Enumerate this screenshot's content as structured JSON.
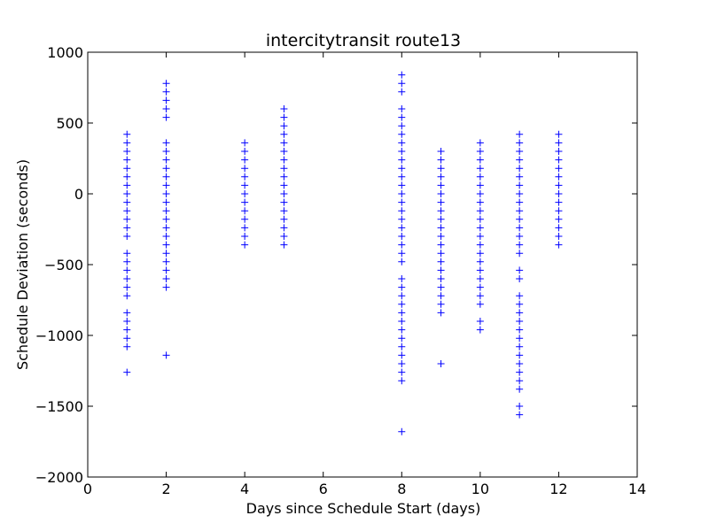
{
  "chart_data": {
    "type": "scatter",
    "title": "intercitytransit route13",
    "xlabel": "Days since Schedule Start (days)",
    "ylabel": "Schedule Deviation (seconds)",
    "xlim": [
      0,
      14
    ],
    "ylim": [
      -2000,
      1000
    ],
    "xticks": [
      0,
      2,
      4,
      6,
      8,
      10,
      12,
      14
    ],
    "yticks": [
      -2000,
      -1500,
      -1000,
      -500,
      0,
      500,
      1000
    ],
    "xtick_labels": [
      "0",
      "2",
      "4",
      "6",
      "8",
      "10",
      "12",
      "14"
    ],
    "ytick_labels": [
      "−2000",
      "−1500",
      "−1000",
      "−500",
      "0",
      "500",
      "1000"
    ],
    "grid": false,
    "marker": "+",
    "marker_color": "#0000ff",
    "points": [
      [
        1,
        420
      ],
      [
        1,
        360
      ],
      [
        1,
        300
      ],
      [
        1,
        240
      ],
      [
        1,
        180
      ],
      [
        1,
        120
      ],
      [
        1,
        60
      ],
      [
        1,
        0
      ],
      [
        1,
        -60
      ],
      [
        1,
        -120
      ],
      [
        1,
        -180
      ],
      [
        1,
        -240
      ],
      [
        1,
        -300
      ],
      [
        1,
        -420
      ],
      [
        1,
        -480
      ],
      [
        1,
        -540
      ],
      [
        1,
        -600
      ],
      [
        1,
        -660
      ],
      [
        1,
        -720
      ],
      [
        1,
        -840
      ],
      [
        1,
        -900
      ],
      [
        1,
        -960
      ],
      [
        1,
        -1020
      ],
      [
        1,
        -1080
      ],
      [
        1,
        -1260
      ],
      [
        2,
        780
      ],
      [
        2,
        720
      ],
      [
        2,
        660
      ],
      [
        2,
        600
      ],
      [
        2,
        540
      ],
      [
        2,
        360
      ],
      [
        2,
        300
      ],
      [
        2,
        240
      ],
      [
        2,
        180
      ],
      [
        2,
        120
      ],
      [
        2,
        60
      ],
      [
        2,
        0
      ],
      [
        2,
        -60
      ],
      [
        2,
        -120
      ],
      [
        2,
        -180
      ],
      [
        2,
        -240
      ],
      [
        2,
        -300
      ],
      [
        2,
        -360
      ],
      [
        2,
        -420
      ],
      [
        2,
        -480
      ],
      [
        2,
        -540
      ],
      [
        2,
        -600
      ],
      [
        2,
        -660
      ],
      [
        2,
        -1140
      ],
      [
        4,
        360
      ],
      [
        4,
        300
      ],
      [
        4,
        240
      ],
      [
        4,
        180
      ],
      [
        4,
        120
      ],
      [
        4,
        60
      ],
      [
        4,
        0
      ],
      [
        4,
        -60
      ],
      [
        4,
        -120
      ],
      [
        4,
        -180
      ],
      [
        4,
        -240
      ],
      [
        4,
        -300
      ],
      [
        4,
        -360
      ],
      [
        5,
        600
      ],
      [
        5,
        540
      ],
      [
        5,
        480
      ],
      [
        5,
        420
      ],
      [
        5,
        360
      ],
      [
        5,
        300
      ],
      [
        5,
        240
      ],
      [
        5,
        180
      ],
      [
        5,
        120
      ],
      [
        5,
        60
      ],
      [
        5,
        0
      ],
      [
        5,
        -60
      ],
      [
        5,
        -120
      ],
      [
        5,
        -180
      ],
      [
        5,
        -240
      ],
      [
        5,
        -300
      ],
      [
        5,
        -360
      ],
      [
        8,
        840
      ],
      [
        8,
        780
      ],
      [
        8,
        720
      ],
      [
        8,
        600
      ],
      [
        8,
        540
      ],
      [
        8,
        480
      ],
      [
        8,
        420
      ],
      [
        8,
        360
      ],
      [
        8,
        300
      ],
      [
        8,
        240
      ],
      [
        8,
        180
      ],
      [
        8,
        120
      ],
      [
        8,
        60
      ],
      [
        8,
        0
      ],
      [
        8,
        -60
      ],
      [
        8,
        -120
      ],
      [
        8,
        -180
      ],
      [
        8,
        -240
      ],
      [
        8,
        -300
      ],
      [
        8,
        -360
      ],
      [
        8,
        -420
      ],
      [
        8,
        -480
      ],
      [
        8,
        -600
      ],
      [
        8,
        -660
      ],
      [
        8,
        -720
      ],
      [
        8,
        -780
      ],
      [
        8,
        -840
      ],
      [
        8,
        -900
      ],
      [
        8,
        -960
      ],
      [
        8,
        -1020
      ],
      [
        8,
        -1080
      ],
      [
        8,
        -1140
      ],
      [
        8,
        -1200
      ],
      [
        8,
        -1260
      ],
      [
        8,
        -1320
      ],
      [
        8,
        -1680
      ],
      [
        9,
        300
      ],
      [
        9,
        240
      ],
      [
        9,
        180
      ],
      [
        9,
        120
      ],
      [
        9,
        60
      ],
      [
        9,
        0
      ],
      [
        9,
        -60
      ],
      [
        9,
        -120
      ],
      [
        9,
        -180
      ],
      [
        9,
        -240
      ],
      [
        9,
        -300
      ],
      [
        9,
        -360
      ],
      [
        9,
        -420
      ],
      [
        9,
        -480
      ],
      [
        9,
        -540
      ],
      [
        9,
        -600
      ],
      [
        9,
        -660
      ],
      [
        9,
        -720
      ],
      [
        9,
        -780
      ],
      [
        9,
        -840
      ],
      [
        9,
        -1200
      ],
      [
        10,
        360
      ],
      [
        10,
        300
      ],
      [
        10,
        240
      ],
      [
        10,
        180
      ],
      [
        10,
        120
      ],
      [
        10,
        60
      ],
      [
        10,
        0
      ],
      [
        10,
        -60
      ],
      [
        10,
        -120
      ],
      [
        10,
        -180
      ],
      [
        10,
        -240
      ],
      [
        10,
        -300
      ],
      [
        10,
        -360
      ],
      [
        10,
        -420
      ],
      [
        10,
        -480
      ],
      [
        10,
        -540
      ],
      [
        10,
        -600
      ],
      [
        10,
        -660
      ],
      [
        10,
        -720
      ],
      [
        10,
        -780
      ],
      [
        10,
        -900
      ],
      [
        10,
        -960
      ],
      [
        11,
        420
      ],
      [
        11,
        360
      ],
      [
        11,
        300
      ],
      [
        11,
        240
      ],
      [
        11,
        180
      ],
      [
        11,
        120
      ],
      [
        11,
        60
      ],
      [
        11,
        0
      ],
      [
        11,
        -60
      ],
      [
        11,
        -120
      ],
      [
        11,
        -180
      ],
      [
        11,
        -240
      ],
      [
        11,
        -300
      ],
      [
        11,
        -360
      ],
      [
        11,
        -420
      ],
      [
        11,
        -540
      ],
      [
        11,
        -600
      ],
      [
        11,
        -720
      ],
      [
        11,
        -780
      ],
      [
        11,
        -840
      ],
      [
        11,
        -900
      ],
      [
        11,
        -960
      ],
      [
        11,
        -1020
      ],
      [
        11,
        -1080
      ],
      [
        11,
        -1140
      ],
      [
        11,
        -1200
      ],
      [
        11,
        -1260
      ],
      [
        11,
        -1320
      ],
      [
        11,
        -1380
      ],
      [
        11,
        -1500
      ],
      [
        11,
        -1560
      ],
      [
        12,
        420
      ],
      [
        12,
        360
      ],
      [
        12,
        300
      ],
      [
        12,
        240
      ],
      [
        12,
        180
      ],
      [
        12,
        120
      ],
      [
        12,
        60
      ],
      [
        12,
        0
      ],
      [
        12,
        -60
      ],
      [
        12,
        -120
      ],
      [
        12,
        -180
      ],
      [
        12,
        -240
      ],
      [
        12,
        -300
      ],
      [
        12,
        -360
      ]
    ]
  }
}
